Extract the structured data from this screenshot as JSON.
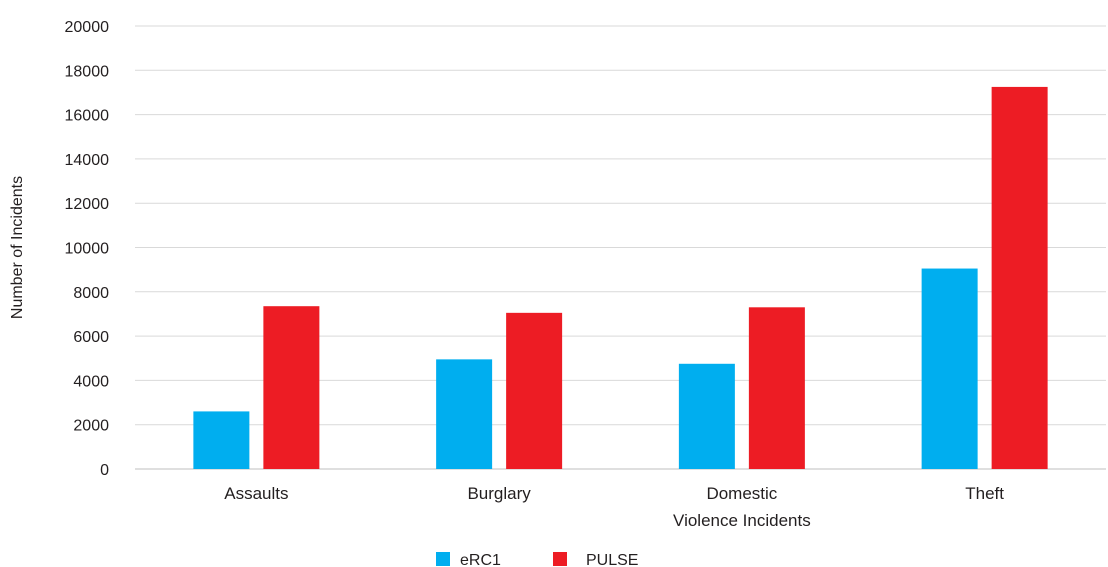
{
  "chart_data": {
    "type": "bar",
    "categories": [
      [
        "Assaults"
      ],
      [
        "Burglary"
      ],
      [
        "Domestic",
        "Violence Incidents"
      ],
      [
        "Theft"
      ]
    ],
    "series": [
      {
        "name": "eRC1",
        "color": "#00aeef",
        "values": [
          2600,
          4950,
          4750,
          9050
        ]
      },
      {
        "name": "PULSE",
        "color": "#ed1c24",
        "values": [
          7350,
          7050,
          7300,
          17250
        ]
      }
    ],
    "ylabel": "Number of Incidents",
    "xlabel": "",
    "ylim": [
      0,
      20000
    ],
    "yticks": [
      0,
      2000,
      4000,
      6000,
      8000,
      10000,
      12000,
      14000,
      16000,
      18000,
      20000
    ],
    "grid": true,
    "legend_position": "bottom"
  }
}
